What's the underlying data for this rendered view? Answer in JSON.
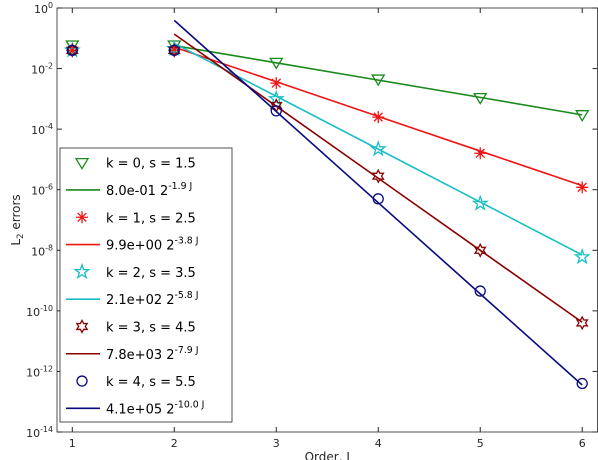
{
  "chart_data": {
    "type": "line",
    "xlabel": "Order, J",
    "ylabel": "L_{2} errors",
    "x": [
      1,
      2,
      3,
      4,
      5,
      6
    ],
    "xlim": [
      0.85,
      6.15
    ],
    "xticks": [
      1,
      2,
      3,
      4,
      5,
      6
    ],
    "ylog": true,
    "ylim": [
      1e-14,
      1
    ],
    "yticks": [
      {
        "value": 1e-14,
        "label": "10^{-14}"
      },
      {
        "value": 1e-12,
        "label": "10^{-12}"
      },
      {
        "value": 1e-10,
        "label": "10^{-10}"
      },
      {
        "value": 1e-08,
        "label": "10^{-8}"
      },
      {
        "value": 1e-06,
        "label": "10^{-6}"
      },
      {
        "value": 0.0001,
        "label": "10^{-4}"
      },
      {
        "value": 0.01,
        "label": "10^{-2}"
      },
      {
        "value": 1,
        "label": "10^{0}"
      }
    ],
    "grid": false,
    "legend": "lower left",
    "series": [
      {
        "name": "k = 0, s = 1.5",
        "color": "#1a8a1a",
        "marker": "triangle-down",
        "values": [
          0.06,
          0.06,
          0.016,
          0.0045,
          0.0011,
          0.0003
        ]
      },
      {
        "name": "8.0e-01 2^{-1.9 J}",
        "color": "#1a8a1a",
        "values": [
          null,
          0.0574,
          0.0155,
          0.00416,
          0.00112,
          0.000296
        ]
      },
      {
        "name": "k = 1, s = 2.5",
        "color": "#f01414",
        "marker": "asterisk",
        "values": [
          0.04,
          0.04,
          0.0033,
          0.00025,
          1.6e-05,
          1.2e-06
        ]
      },
      {
        "name": "9.9e+00 2^{-3.8 J}",
        "color": "#f01414",
        "values": [
          null,
          0.051,
          0.00366,
          0.000263,
          1.89e-05,
          1.36e-06
        ]
      },
      {
        "name": "k = 2, s = 3.5",
        "color": "#17bfc4",
        "marker": "pentagram",
        "values": [
          0.04,
          0.045,
          0.001,
          2.2e-05,
          3.5e-07,
          6e-09
        ]
      },
      {
        "name": "2.1e+02 2^{-5.8 J}",
        "color": "#17bfc4",
        "values": [
          null,
          0.0676,
          0.00122,
          2.19e-05,
          3.91e-07,
          7e-09
        ]
      },
      {
        "name": "k = 3, s = 4.5",
        "color": "#8b0000",
        "marker": "hexagram",
        "values": [
          0.04,
          0.04,
          0.0006,
          2.8e-06,
          1e-08,
          4e-11
        ]
      },
      {
        "name": "7.8e+03 2^{-7.9 J}",
        "color": "#8b0000",
        "values": [
          null,
          0.137,
          0.000573,
          2.39e-06,
          1e-08,
          4.2e-11
        ]
      },
      {
        "name": "k = 4, s = 5.5",
        "color": "#0a0a80",
        "marker": "circle",
        "values": [
          0.04,
          0.04,
          0.0004,
          5e-07,
          4.5e-10,
          4e-13
        ]
      },
      {
        "name": "4.1e+05 2^{-10.0 J}",
        "color": "#0a0a80",
        "values": [
          null,
          0.391,
          0.000382,
          3.73e-07,
          3.64e-10,
          3.56e-13
        ]
      }
    ]
  }
}
